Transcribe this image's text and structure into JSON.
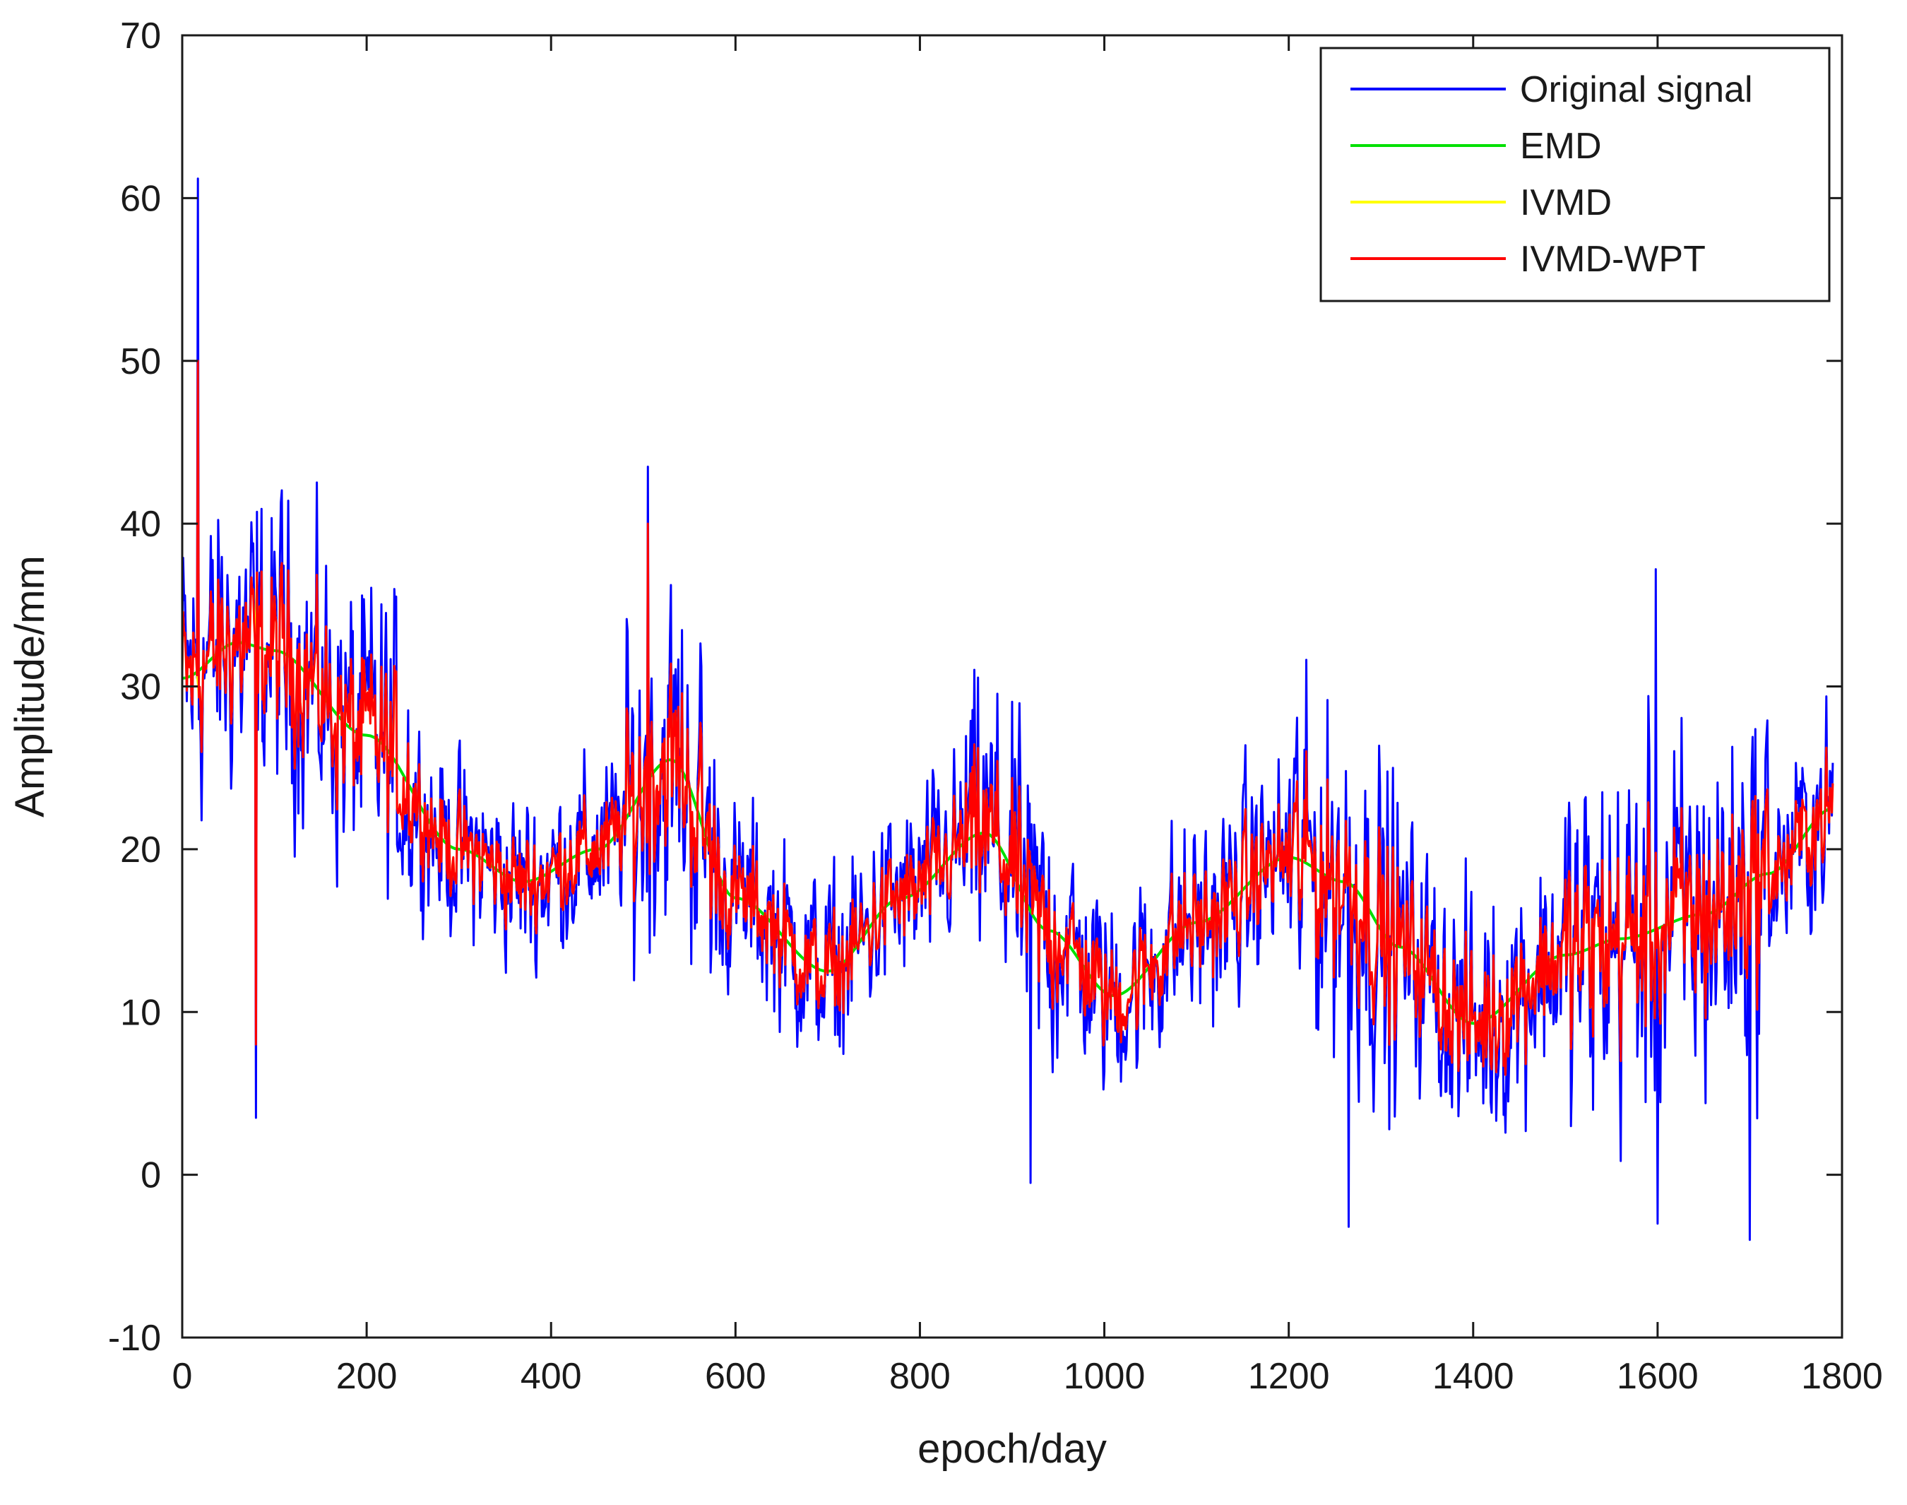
{
  "chart_data": {
    "type": "line",
    "title": "",
    "xlabel": "epoch/day",
    "ylabel": "Amplitude/mm",
    "xlim": [
      0,
      1800
    ],
    "ylim": [
      -10,
      70
    ],
    "xticks": [
      0,
      200,
      400,
      600,
      800,
      1000,
      1200,
      1400,
      1600,
      1800
    ],
    "yticks": [
      -10,
      0,
      10,
      20,
      30,
      40,
      50,
      60,
      70
    ],
    "legend_position": "top-right",
    "grid": false,
    "series": [
      {
        "name": "Original signal",
        "color": "#0000ff",
        "kind": "noisy",
        "noise_scale": 1.0,
        "x_end": 1790,
        "spikes": [
          {
            "x": 17,
            "y": 61.2
          },
          {
            "x": 80,
            "y": 3.5
          },
          {
            "x": 505,
            "y": 43.5
          },
          {
            "x": 920,
            "y": -0.5
          },
          {
            "x": 1265,
            "y": -3.2
          },
          {
            "x": 1600,
            "y": -3
          },
          {
            "x": 1598,
            "y": 37.2
          },
          {
            "x": 1700,
            "y": -4
          }
        ]
      },
      {
        "name": "EMD",
        "color": "#00e000",
        "kind": "smooth",
        "x_end": 1790,
        "anchors": [
          [
            0,
            30.5
          ],
          [
            60,
            32.7
          ],
          [
            100,
            32.2
          ],
          [
            200,
            27
          ],
          [
            300,
            20
          ],
          [
            370,
            18
          ],
          [
            450,
            20
          ],
          [
            530,
            25.5
          ],
          [
            600,
            17
          ],
          [
            700,
            12.5
          ],
          [
            780,
            17
          ],
          [
            870,
            21
          ],
          [
            940,
            15
          ],
          [
            1010,
            11
          ],
          [
            1100,
            15.5
          ],
          [
            1200,
            19.5
          ],
          [
            1260,
            18
          ],
          [
            1320,
            14
          ],
          [
            1400,
            9.3
          ],
          [
            1500,
            13.5
          ],
          [
            1560,
            14.5
          ],
          [
            1650,
            16
          ],
          [
            1720,
            18.5
          ],
          [
            1790,
            22.5
          ]
        ]
      },
      {
        "name": "IVMD",
        "color": "#ffff00",
        "kind": "noisy",
        "noise_scale": 0.55,
        "x_end": 1790,
        "spikes": []
      },
      {
        "name": "IVMD-WPT",
        "color": "#ff0000",
        "kind": "noisy",
        "noise_scale": 0.55,
        "x_end": 1790,
        "spikes": [
          {
            "x": 17,
            "y": 50
          },
          {
            "x": 80,
            "y": 8
          },
          {
            "x": 505,
            "y": 40
          }
        ]
      }
    ]
  }
}
